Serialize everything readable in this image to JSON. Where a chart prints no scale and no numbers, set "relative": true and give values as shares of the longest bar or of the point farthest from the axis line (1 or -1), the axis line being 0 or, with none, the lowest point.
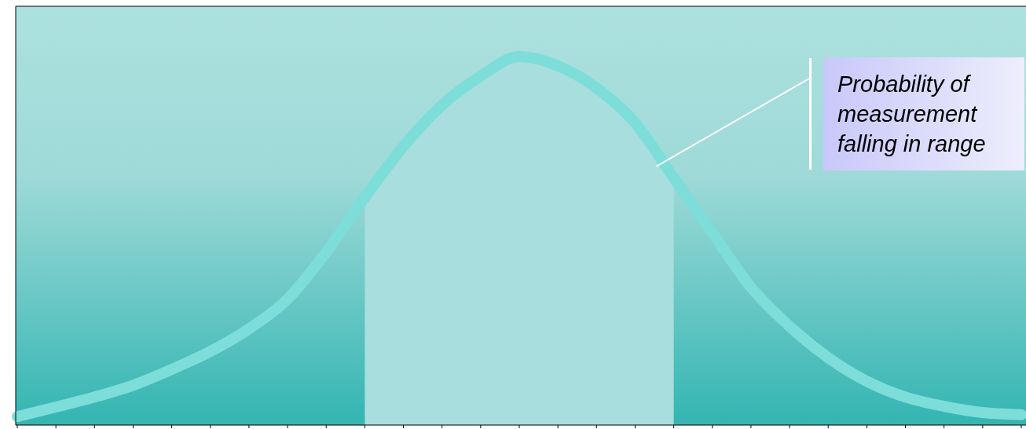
{
  "chart_data": {
    "type": "line",
    "relative": true,
    "categories": [
      null,
      null,
      null,
      null,
      null,
      null,
      null,
      null,
      null,
      null,
      null,
      null,
      null,
      null,
      null,
      null,
      null,
      null,
      null,
      null,
      null,
      null,
      null,
      null,
      null,
      null,
      null
    ],
    "series": [
      {
        "type": "area",
        "color": "#a8dedd",
        "values": [
          null,
          null,
          null,
          null,
          null,
          null,
          null,
          null,
          null,
          0.618,
          0.756,
          0.868,
          0.947,
          1.0,
          0.975,
          0.915,
          0.82,
          0.671,
          null,
          null,
          null,
          null,
          null,
          null,
          null,
          null,
          null
        ]
      },
      {
        "type": "line",
        "color": "#7dddd9",
        "values": [
          0.023,
          0.049,
          0.076,
          0.108,
          0.151,
          0.2,
          0.261,
          0.342,
          0.469,
          0.618,
          0.756,
          0.868,
          0.947,
          1.0,
          0.975,
          0.915,
          0.82,
          0.671,
          0.522,
          0.374,
          0.268,
          0.183,
          0.119,
          0.076,
          0.051,
          0.034,
          0.028
        ]
      }
    ],
    "annotations": [
      "Probability of measurement falling in range"
    ],
    "line_style": "solid",
    "marker": "none"
  }
}
